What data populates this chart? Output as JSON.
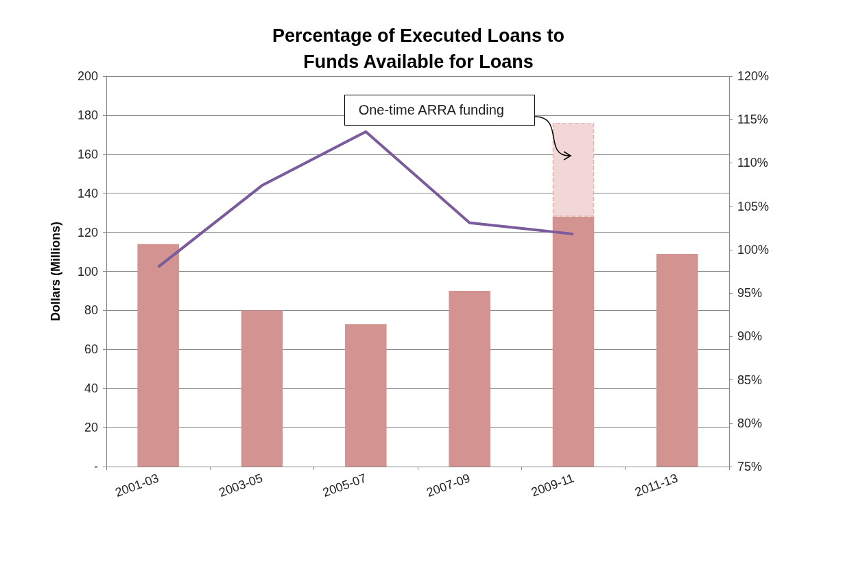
{
  "chart_data": {
    "type": "bar",
    "title": "Percentage of Executed Loans to\nFunds Available for Loans",
    "ylabel": "Dollars (Millions)",
    "categories": [
      "2001-03",
      "2003-05",
      "2005-07",
      "2007-09",
      "2009-11",
      "2011-13"
    ],
    "stacked": true,
    "series": [
      {
        "color": "#d39391",
        "values": [
          114,
          80,
          73,
          90,
          128,
          109
        ]
      },
      {
        "type": "bar",
        "color": "#f2d7d7",
        "line_style": "dashed",
        "values": [
          null,
          null,
          null,
          null,
          48,
          null
        ]
      },
      {
        "type": "line",
        "axis": "y2",
        "color": "#7a5c9c",
        "marker": "none",
        "values": [
          98,
          107.4,
          113.6,
          103.1,
          101.8,
          null
        ]
      }
    ],
    "ylim": [
      0,
      200
    ],
    "yticks": [
      {
        "value": 0,
        "label": "-"
      },
      20,
      40,
      60,
      80,
      100,
      120,
      140,
      160,
      180,
      200
    ],
    "y2lim": [
      75,
      120
    ],
    "y2ticks": [
      {
        "value": 75,
        "label": "75%"
      },
      {
        "value": 80,
        "label": "80%"
      },
      {
        "value": 85,
        "label": "85%"
      },
      {
        "value": 90,
        "label": "90%"
      },
      {
        "value": 95,
        "label": "95%"
      },
      {
        "value": 100,
        "label": "100%"
      },
      {
        "value": 105,
        "label": "105%"
      },
      {
        "value": 110,
        "label": "110%"
      },
      {
        "value": 115,
        "label": "115%"
      },
      {
        "value": 120,
        "label": "120%"
      }
    ],
    "grid": "y",
    "annotations": [
      "One-time ARRA funding"
    ]
  }
}
